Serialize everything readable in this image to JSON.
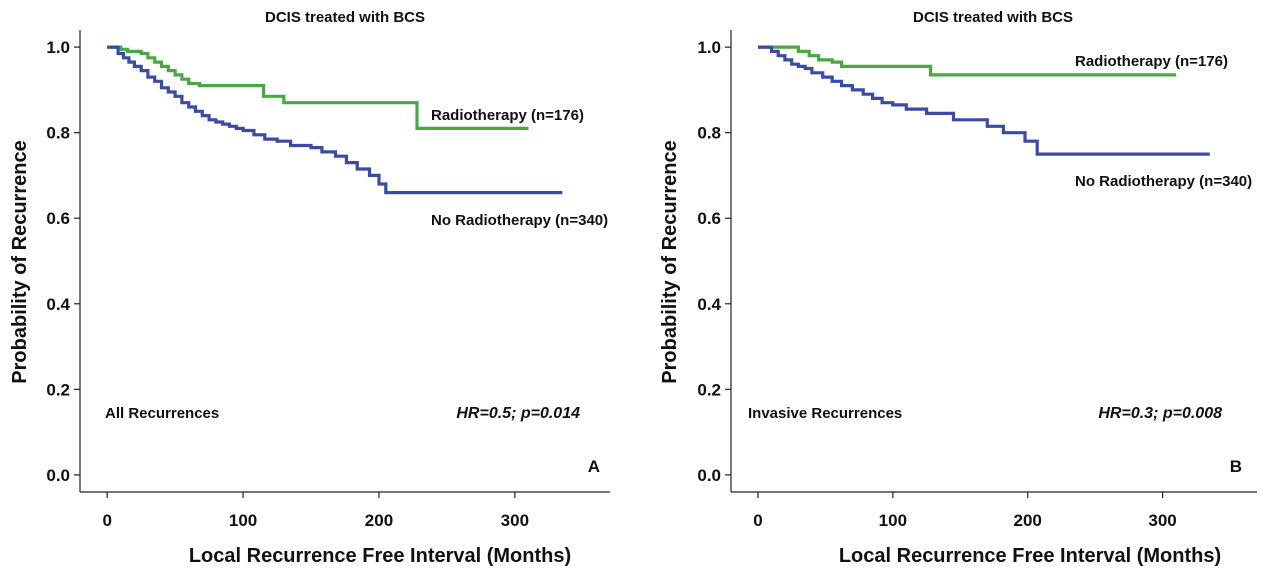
{
  "chart_data": [
    {
      "type": "line",
      "panel": "A",
      "title": "DCIS treated with BCS",
      "xlabel": "Local Recurrence Free Interval (Months)",
      "ylabel": "Probability of Recurrence",
      "xlim": [
        -20,
        370
      ],
      "ylim": [
        -0.04,
        1.04
      ],
      "x_ticks": [
        "0",
        "100",
        "200",
        "300"
      ],
      "y_ticks": [
        "0.0",
        "0.2",
        "0.4",
        "0.6",
        "0.8",
        "1.0"
      ],
      "grid": false,
      "annotation_left": "All Recurrences",
      "annotation_stat": "HR=0.5; p=0.014",
      "panel_letter": "A",
      "series": [
        {
          "name": "Radiotherapy (n=176)",
          "color": "#4aa844",
          "step": true,
          "x": [
            0,
            10,
            15,
            25,
            30,
            35,
            40,
            45,
            50,
            55,
            60,
            68,
            75,
            115,
            130,
            228,
            310
          ],
          "y": [
            1.0,
            0.995,
            0.99,
            0.985,
            0.975,
            0.965,
            0.955,
            0.945,
            0.935,
            0.925,
            0.915,
            0.91,
            0.91,
            0.885,
            0.87,
            0.81,
            0.81
          ]
        },
        {
          "name": "No Radiotherapy (n=340)",
          "color": "#3b4ba5",
          "step": true,
          "x": [
            0,
            8,
            12,
            16,
            20,
            25,
            30,
            35,
            40,
            45,
            50,
            55,
            60,
            65,
            70,
            75,
            80,
            85,
            90,
            95,
            100,
            108,
            116,
            125,
            135,
            150,
            158,
            168,
            176,
            184,
            193,
            200,
            205,
            335
          ],
          "y": [
            1.0,
            0.985,
            0.975,
            0.965,
            0.955,
            0.945,
            0.93,
            0.92,
            0.905,
            0.895,
            0.885,
            0.87,
            0.86,
            0.85,
            0.84,
            0.83,
            0.825,
            0.82,
            0.815,
            0.81,
            0.805,
            0.795,
            0.785,
            0.78,
            0.77,
            0.765,
            0.755,
            0.745,
            0.73,
            0.715,
            0.7,
            0.68,
            0.66,
            0.66
          ]
        }
      ]
    },
    {
      "type": "line",
      "panel": "B",
      "title": "DCIS treated with BCS",
      "xlabel": "Local Recurrence Free Interval (Months)",
      "ylabel": "Probability of Recurrence",
      "xlim": [
        -20,
        370
      ],
      "ylim": [
        -0.04,
        1.04
      ],
      "x_ticks": [
        "0",
        "100",
        "200",
        "300"
      ],
      "y_ticks": [
        "0.0",
        "0.2",
        "0.4",
        "0.6",
        "0.8",
        "1.0"
      ],
      "grid": false,
      "annotation_left": "Invasive Recurrences",
      "annotation_stat": "HR=0.3; p=0.008",
      "panel_letter": "B",
      "series": [
        {
          "name": "Radiotherapy (n=176)",
          "color": "#4aa844",
          "step": true,
          "x": [
            0,
            30,
            38,
            45,
            55,
            62,
            128,
            310
          ],
          "y": [
            1.0,
            0.99,
            0.98,
            0.97,
            0.965,
            0.955,
            0.935,
            0.935
          ]
        },
        {
          "name": "No Radiotherapy (n=340)",
          "color": "#3b4ba5",
          "step": true,
          "x": [
            0,
            10,
            15,
            20,
            25,
            30,
            35,
            40,
            48,
            55,
            62,
            70,
            78,
            85,
            92,
            100,
            110,
            125,
            145,
            170,
            182,
            198,
            207,
            335
          ],
          "y": [
            1.0,
            0.99,
            0.98,
            0.97,
            0.96,
            0.955,
            0.95,
            0.94,
            0.93,
            0.92,
            0.91,
            0.9,
            0.89,
            0.88,
            0.87,
            0.865,
            0.855,
            0.845,
            0.83,
            0.815,
            0.8,
            0.78,
            0.75,
            0.75
          ]
        }
      ]
    }
  ]
}
